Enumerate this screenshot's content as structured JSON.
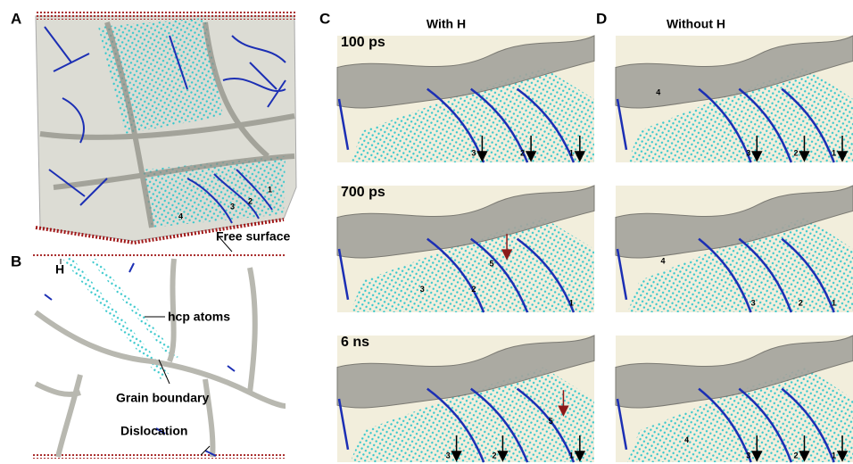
{
  "panel_labels": [
    "A",
    "B",
    "C",
    "D"
  ],
  "column_titles": [
    "With H",
    "Without H"
  ],
  "time_labels": [
    "100 ps",
    "700 ps",
    "6 ns"
  ],
  "panel_a_numbers": [
    "4",
    "3",
    "2",
    "1"
  ],
  "panel_b_annotations": [
    "Free surface",
    "H",
    "hcp atoms",
    "Grain boundary",
    "Dislocation"
  ],
  "snapshots": [
    {
      "numbers": [
        "3",
        "2",
        "1"
      ]
    },
    {
      "numbers": [
        "4",
        "3",
        "2",
        "1"
      ]
    },
    {
      "numbers": [
        "3",
        "2",
        "5",
        "1"
      ]
    },
    {
      "numbers": [
        "4",
        "3",
        "2",
        "1"
      ]
    },
    {
      "numbers": [
        "3",
        "2",
        "5",
        "1"
      ]
    },
    {
      "numbers": [
        "4",
        "3",
        "2",
        "1"
      ]
    }
  ]
}
